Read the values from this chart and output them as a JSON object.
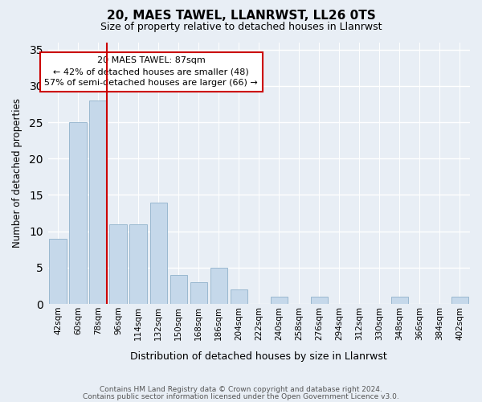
{
  "title1": "20, MAES TAWEL, LLANRWST, LL26 0TS",
  "title2": "Size of property relative to detached houses in Llanrwst",
  "xlabel": "Distribution of detached houses by size in Llanrwst",
  "ylabel": "Number of detached properties",
  "categories": [
    "42sqm",
    "60sqm",
    "78sqm",
    "96sqm",
    "114sqm",
    "132sqm",
    "150sqm",
    "168sqm",
    "186sqm",
    "204sqm",
    "222sqm",
    "240sqm",
    "258sqm",
    "276sqm",
    "294sqm",
    "312sqm",
    "330sqm",
    "348sqm",
    "366sqm",
    "384sqm",
    "402sqm"
  ],
  "values": [
    9,
    25,
    28,
    11,
    11,
    14,
    4,
    3,
    5,
    2,
    0,
    1,
    0,
    1,
    0,
    0,
    0,
    1,
    0,
    0,
    1
  ],
  "bar_color": "#c5d8ea",
  "bar_edge_color": "#9ab8d0",
  "vline_color": "#cc0000",
  "annotation_text": "20 MAES TAWEL: 87sqm\n← 42% of detached houses are smaller (48)\n57% of semi-detached houses are larger (66) →",
  "annotation_box_color": "#ffffff",
  "annotation_box_edge": "#cc0000",
  "ylim": [
    0,
    36
  ],
  "yticks": [
    0,
    5,
    10,
    15,
    20,
    25,
    30,
    35
  ],
  "footer1": "Contains HM Land Registry data © Crown copyright and database right 2024.",
  "footer2": "Contains public sector information licensed under the Open Government Licence v3.0.",
  "bg_color": "#e8eef5",
  "plot_bg_color": "#e8eef5",
  "grid_color": "#ffffff"
}
